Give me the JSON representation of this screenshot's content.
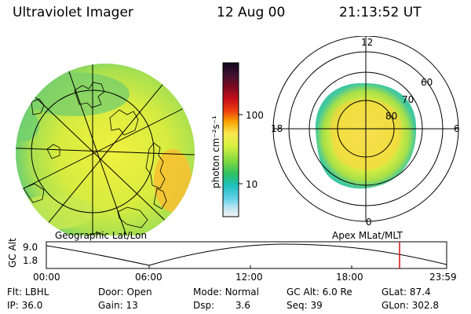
{
  "header": {
    "instrument": "Ultraviolet Imager",
    "date": "12 Aug 00",
    "time": "21:13:52 UT"
  },
  "colorbar": {
    "unit_label": "photon cm⁻²s⁻¹",
    "tick_labels": [
      "100",
      "10"
    ],
    "colors": [
      "#1a0a2e",
      "#3a1030",
      "#6a0a1a",
      "#a0101a",
      "#e02010",
      "#f06010",
      "#f8a000",
      "#f8e040",
      "#e0f040",
      "#a0e040",
      "#40c840",
      "#10c0a0",
      "#20c8d8",
      "#80d8e8",
      "#c8e8f0",
      "#f0f0f0"
    ]
  },
  "left_panel": {
    "caption": "Geographic Lat/Lon"
  },
  "right_panel": {
    "caption": "Apex MLat/MLT",
    "mlt_labels": [
      "12",
      "18",
      "6",
      "0"
    ],
    "mlat_labels": [
      "60",
      "70",
      "80"
    ]
  },
  "altitude_plot": {
    "ylabel": "GC Alt",
    "ytick_labels": [
      "9.0",
      "1.8"
    ],
    "xtick_labels": [
      "00:00",
      "06:00",
      "12:00",
      "18:00",
      "23:59"
    ],
    "marker_color": "#d01010"
  },
  "info": {
    "row1": [
      {
        "label": "Flt:",
        "value": "LBHL"
      },
      {
        "label": "Door:",
        "value": "Open"
      },
      {
        "label": "Mode:",
        "value": "Normal"
      },
      {
        "label": "GC Alt:",
        "value": "6.0 Re"
      },
      {
        "label": "GLat:",
        "value": "87.4"
      }
    ],
    "row2": [
      {
        "label": "IP:",
        "value": "36.0"
      },
      {
        "label": "Gain:",
        "value": "13"
      },
      {
        "label": "Dsp:",
        "value": "3.6"
      },
      {
        "label": "Seq:",
        "value": "39"
      },
      {
        "label": "GLon:",
        "value": "302.8"
      }
    ]
  }
}
